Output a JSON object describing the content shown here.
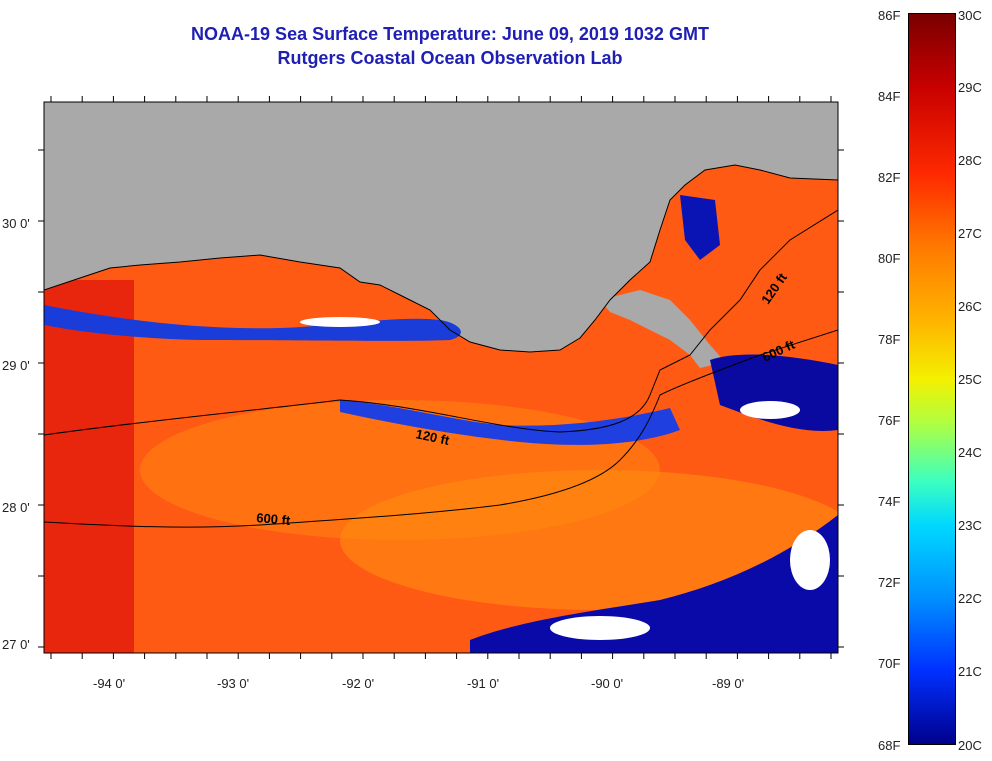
{
  "header": {
    "title": "NOAA-19 Sea Surface Temperature:  June 09, 2019 1032 GMT",
    "subtitle": "Rutgers Coastal Ocean Observation Lab"
  },
  "map": {
    "lat_labels": [
      "30 0'",
      "29 0'",
      "28 0'",
      "27 0'"
    ],
    "lon_labels": [
      "-94 0'",
      "-93 0'",
      "-92 0'",
      "-91 0'",
      "-90 0'",
      "-89 0'"
    ],
    "contour_labels": [
      "120 ft",
      "600 ft",
      "120 ft",
      "600 ft"
    ],
    "land_color": "#a9a9a9"
  },
  "colorbar": {
    "f_labels": [
      "86F",
      "84F",
      "82F",
      "80F",
      "78F",
      "76F",
      "74F",
      "72F",
      "70F",
      "68F"
    ],
    "c_labels": [
      "30C",
      "29C",
      "28C",
      "27C",
      "26C",
      "25C",
      "24C",
      "23C",
      "22C",
      "21C",
      "20C"
    ]
  }
}
